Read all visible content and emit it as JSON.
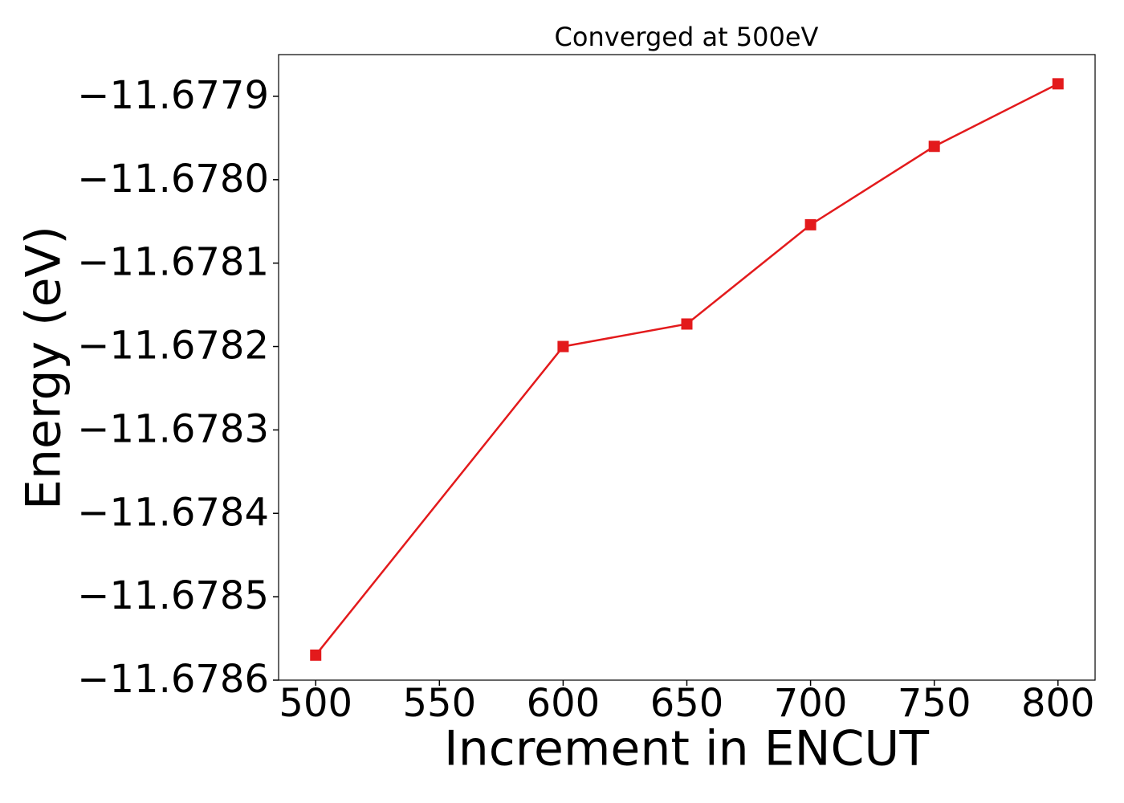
{
  "chart_data": {
    "type": "line",
    "title": "Converged at 500eV",
    "x_label": "Increment in ENCUT",
    "y_label": "Energy (eV)",
    "x": [
      500,
      600,
      650,
      700,
      750,
      800
    ],
    "series": [
      {
        "name": null,
        "color": "#e31a1c",
        "marker": "square",
        "values": [
          -11.67857,
          -11.6782,
          -11.678173,
          -11.678054,
          -11.67796,
          -11.677885
        ]
      }
    ],
    "xlim": [
      485,
      815
    ],
    "ylim": [
      -11.6786,
      -11.67785
    ],
    "xticks": [
      500,
      550,
      600,
      650,
      700,
      750,
      800
    ],
    "yticks": [
      {
        "value": -11.6786,
        "label": "−11.6786"
      },
      {
        "value": -11.6785,
        "label": "−11.6785"
      },
      {
        "value": -11.6784,
        "label": "−11.6784"
      },
      {
        "value": -11.6783,
        "label": "−11.6783"
      },
      {
        "value": -11.6782,
        "label": "−11.6782"
      },
      {
        "value": -11.6781,
        "label": "−11.6781"
      },
      {
        "value": -11.678,
        "label": "−11.6780"
      },
      {
        "value": -11.6779,
        "label": "−11.6779"
      }
    ],
    "grid": false
  }
}
